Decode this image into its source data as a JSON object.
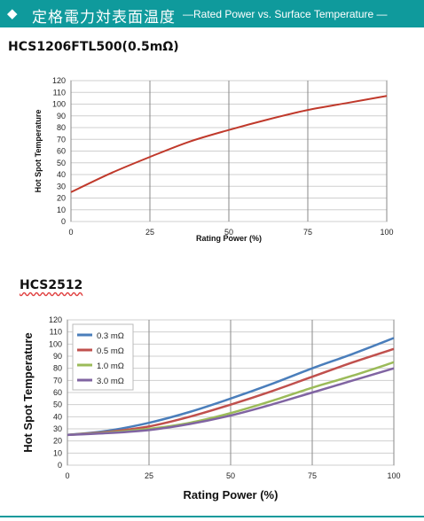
{
  "header": {
    "title_jp": "定格電力対表面温度",
    "title_en": "—Rated Power vs. Surface Temperature —",
    "marker": "◆",
    "bg_color": "#0f9a9c"
  },
  "sections": [
    {
      "label": "HCS1206FTL500(0.5mΩ)"
    },
    {
      "label": "HCS2512"
    }
  ],
  "chart_data": [
    {
      "type": "line",
      "xlabel": "Rating Power (%)",
      "ylabel": "Hot Spot Temperature",
      "xlim": [
        0,
        100
      ],
      "ylim": [
        0,
        120
      ],
      "x_ticks": [
        0,
        25,
        50,
        75,
        100
      ],
      "y_ticks": [
        0,
        10,
        20,
        30,
        40,
        50,
        60,
        70,
        80,
        90,
        100,
        110,
        120
      ],
      "grid": true,
      "series": [
        {
          "color": "#c0392b",
          "x": [
            0,
            12.5,
            25,
            37.5,
            50,
            62.5,
            75,
            87.5,
            100
          ],
          "y": [
            25,
            41,
            55,
            68,
            78,
            87,
            95,
            101,
            107
          ]
        }
      ]
    },
    {
      "type": "line",
      "xlabel": "Rating Power (%)",
      "ylabel": "Hot Spot Temperature",
      "xlim": [
        0,
        100
      ],
      "ylim": [
        0,
        120
      ],
      "x_ticks": [
        0,
        25,
        50,
        75,
        100
      ],
      "y_ticks": [
        0,
        10,
        20,
        30,
        40,
        50,
        60,
        70,
        80,
        90,
        100,
        110,
        120
      ],
      "grid": true,
      "legend": "top-left",
      "series": [
        {
          "name": "0.3 mΩ",
          "color": "#4a7ebb",
          "x": [
            0,
            12.5,
            25,
            37.5,
            50,
            62.5,
            75,
            87.5,
            100
          ],
          "y": [
            25,
            28.5,
            35,
            44,
            55,
            67,
            80,
            92,
            105
          ]
        },
        {
          "name": "0.5 mΩ",
          "color": "#c0504d",
          "x": [
            0,
            12.5,
            25,
            37.5,
            50,
            62.5,
            75,
            87.5,
            100
          ],
          "y": [
            25,
            27.5,
            32,
            40,
            50,
            61,
            73,
            85,
            96
          ]
        },
        {
          "name": "1.0 mΩ",
          "color": "#9bbb59",
          "x": [
            0,
            12.5,
            25,
            37.5,
            50,
            62.5,
            75,
            87.5,
            100
          ],
          "y": [
            25,
            27,
            30,
            35,
            43,
            53,
            64,
            74,
            85
          ]
        },
        {
          "name": "3.0 mΩ",
          "color": "#8064a2",
          "x": [
            0,
            12.5,
            25,
            37.5,
            50,
            62.5,
            75,
            87.5,
            100
          ],
          "y": [
            25,
            26.5,
            29,
            34,
            41,
            50,
            60,
            70,
            80
          ]
        }
      ]
    }
  ]
}
